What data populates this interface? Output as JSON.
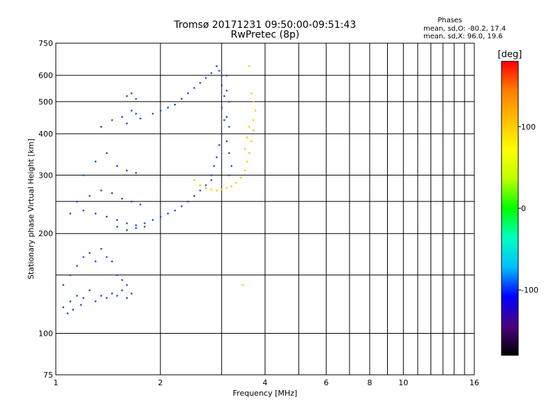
{
  "chart_data": {
    "type": "scatter",
    "title": "Tromsø 20171231 09:50:00-09:51:43",
    "subtitle": "RwPretec (8p)",
    "xlabel": "Frequency [MHz]",
    "ylabel": "Stationary phase Virtual Height [km]",
    "x_scale": "log",
    "y_scale": "log",
    "xlim": [
      1,
      16
    ],
    "ylim": [
      75,
      750
    ],
    "x_ticks": [
      1,
      2,
      4,
      6,
      8,
      10,
      16
    ],
    "x_minor_ticks": [
      3,
      5,
      7,
      9,
      11,
      12,
      13,
      14,
      15
    ],
    "y_ticks": [
      75,
      100,
      200,
      300,
      400,
      500,
      600,
      750
    ],
    "y_minor_ticks": [
      150,
      250
    ],
    "grid": true,
    "phase_stats": {
      "heading": "Phases",
      "line_o": "mean, sd,O: -80.2, 17.4",
      "line_x": "mean, sd,X:  96.0, 19.6"
    },
    "colorbar": {
      "label": "[deg]",
      "range": [
        -180,
        180
      ],
      "ticks": [
        100,
        0,
        -100
      ],
      "colormap": [
        "#000000",
        "#4b0082",
        "#0000ff",
        "#00bfff",
        "#00ffbf",
        "#00ff00",
        "#bfff00",
        "#ffff00",
        "#ffbf00",
        "#ff7f00",
        "#ff0000"
      ]
    },
    "series": [
      {
        "name": "O",
        "color": "#1f4fd6",
        "points": [
          [
            1.05,
            120
          ],
          [
            1.08,
            115
          ],
          [
            1.1,
            125
          ],
          [
            1.12,
            118
          ],
          [
            1.15,
            130
          ],
          [
            1.18,
            122
          ],
          [
            1.2,
            128
          ],
          [
            1.25,
            135
          ],
          [
            1.3,
            125
          ],
          [
            1.35,
            130
          ],
          [
            1.4,
            128
          ],
          [
            1.45,
            132
          ],
          [
            1.5,
            130
          ],
          [
            1.55,
            135
          ],
          [
            1.6,
            128
          ],
          [
            1.65,
            132
          ],
          [
            1.05,
            140
          ],
          [
            1.1,
            150
          ],
          [
            1.15,
            160
          ],
          [
            1.2,
            170
          ],
          [
            1.25,
            175
          ],
          [
            1.3,
            165
          ],
          [
            1.35,
            180
          ],
          [
            1.4,
            170
          ],
          [
            1.45,
            165
          ],
          [
            1.5,
            150
          ],
          [
            1.55,
            145
          ],
          [
            1.6,
            140
          ],
          [
            1.1,
            230
          ],
          [
            1.2,
            235
          ],
          [
            1.3,
            230
          ],
          [
            1.4,
            225
          ],
          [
            1.5,
            220
          ],
          [
            1.6,
            215
          ],
          [
            1.7,
            212
          ],
          [
            1.8,
            215
          ],
          [
            1.9,
            220
          ],
          [
            2.0,
            225
          ],
          [
            2.1,
            230
          ],
          [
            2.2,
            235
          ],
          [
            2.3,
            242
          ],
          [
            2.4,
            250
          ],
          [
            2.5,
            260
          ],
          [
            2.6,
            270
          ],
          [
            2.7,
            280
          ],
          [
            2.8,
            290
          ],
          [
            1.15,
            250
          ],
          [
            1.25,
            260
          ],
          [
            1.35,
            270
          ],
          [
            1.45,
            265
          ],
          [
            1.55,
            255
          ],
          [
            1.65,
            250
          ],
          [
            1.75,
            245
          ],
          [
            1.2,
            300
          ],
          [
            1.3,
            330
          ],
          [
            1.4,
            350
          ],
          [
            1.5,
            320
          ],
          [
            1.6,
            310
          ],
          [
            1.7,
            305
          ],
          [
            1.35,
            420
          ],
          [
            1.45,
            440
          ],
          [
            1.55,
            450
          ],
          [
            1.6,
            430
          ],
          [
            1.65,
            470
          ],
          [
            1.7,
            460
          ],
          [
            1.75,
            445
          ],
          [
            1.6,
            520
          ],
          [
            1.65,
            530
          ],
          [
            1.7,
            510
          ],
          [
            1.5,
            210
          ],
          [
            1.6,
            205
          ],
          [
            1.7,
            208
          ],
          [
            1.8,
            210
          ],
          [
            1.9,
            460
          ],
          [
            2.0,
            470
          ],
          [
            2.1,
            480
          ],
          [
            2.2,
            490
          ],
          [
            2.3,
            510
          ],
          [
            2.4,
            530
          ],
          [
            2.5,
            550
          ],
          [
            2.6,
            570
          ],
          [
            2.7,
            590
          ],
          [
            2.8,
            610
          ],
          [
            2.9,
            640
          ],
          [
            2.95,
            620
          ],
          [
            3.0,
            600
          ],
          [
            3.0,
            560
          ],
          [
            3.05,
            520
          ],
          [
            3.0,
            480
          ],
          [
            3.05,
            440
          ],
          [
            3.0,
            400
          ],
          [
            2.95,
            370
          ],
          [
            2.9,
            340
          ],
          [
            2.85,
            320
          ],
          [
            2.8,
            300
          ],
          [
            3.1,
            600
          ],
          [
            3.1,
            540
          ],
          [
            3.15,
            500
          ],
          [
            3.1,
            450
          ],
          [
            3.15,
            420
          ],
          [
            3.1,
            380
          ],
          [
            3.15,
            350
          ],
          [
            3.2,
            320
          ],
          [
            3.15,
            300
          ]
        ]
      },
      {
        "name": "X",
        "color": "#ffc400",
        "points": [
          [
            2.5,
            290
          ],
          [
            2.6,
            280
          ],
          [
            2.7,
            275
          ],
          [
            2.8,
            272
          ],
          [
            2.9,
            270
          ],
          [
            3.0,
            272
          ],
          [
            3.1,
            275
          ],
          [
            3.2,
            278
          ],
          [
            3.3,
            285
          ],
          [
            3.4,
            295
          ],
          [
            3.5,
            310
          ],
          [
            3.55,
            330
          ],
          [
            3.6,
            350
          ],
          [
            3.65,
            380
          ],
          [
            3.7,
            410
          ],
          [
            3.7,
            440
          ],
          [
            3.75,
            470
          ],
          [
            3.7,
            500
          ],
          [
            3.65,
            530
          ],
          [
            3.6,
            420
          ],
          [
            3.55,
            390
          ],
          [
            3.5,
            360
          ],
          [
            3.6,
            640
          ],
          [
            3.45,
            140
          ]
        ]
      }
    ]
  }
}
